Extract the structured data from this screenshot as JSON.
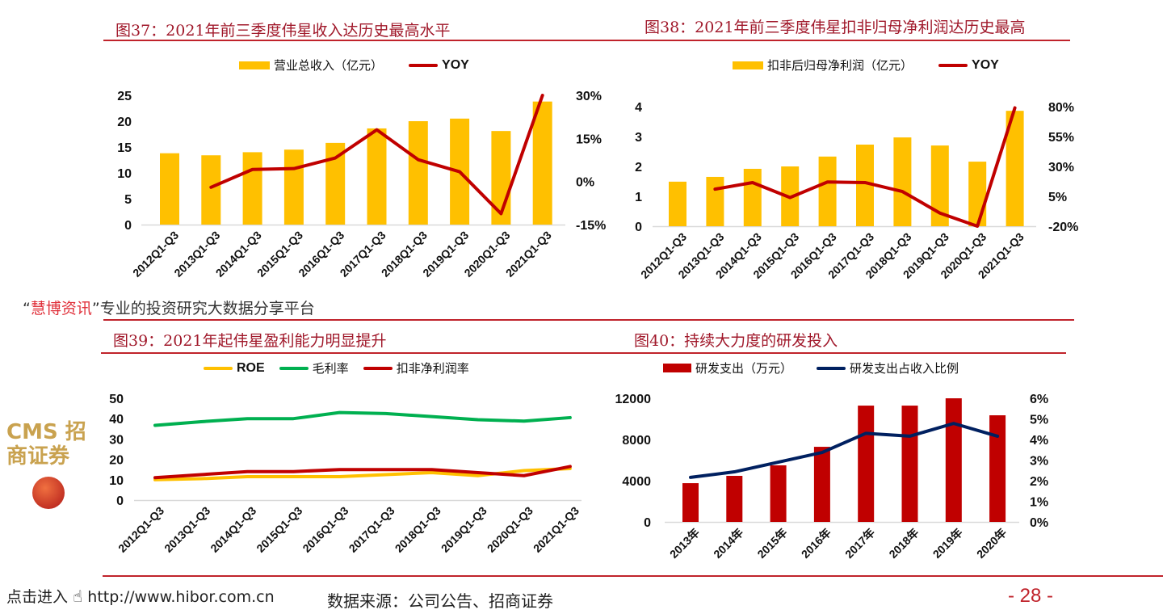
{
  "colors": {
    "yellow": "#FFC000",
    "red": "#C00000",
    "green": "#00B050",
    "navy": "#002060",
    "title": "#A0182A"
  },
  "chart_data": [
    {
      "type": "bar+line",
      "title": "图37：2021年前三季度伟星收入达历史最高水平",
      "categories": [
        "2012Q1-Q3",
        "2013Q1-Q3",
        "2014Q1-Q3",
        "2015Q1-Q3",
        "2016Q1-Q3",
        "2017Q1-Q3",
        "2018Q1-Q3",
        "2019Q1-Q3",
        "2020Q1-Q3",
        "2021Q1-Q3"
      ],
      "series": [
        {
          "name": "营业总收入（亿元）",
          "type": "bar",
          "axis": "left",
          "color": "#FFC000",
          "values": [
            13.8,
            13.4,
            14.0,
            14.5,
            15.8,
            18.6,
            20.0,
            20.5,
            18.1,
            23.8
          ]
        },
        {
          "name": "YOY",
          "type": "line",
          "axis": "right",
          "color": "#C00000",
          "values": [
            null,
            -2.0,
            4.2,
            4.5,
            8.2,
            18.0,
            7.6,
            3.4,
            -11.2,
            30.0
          ]
        }
      ],
      "left_axis": {
        "range": [
          0,
          25
        ],
        "ticks": [
          "0",
          "5",
          "10",
          "15",
          "20",
          "25"
        ]
      },
      "right_axis": {
        "range": [
          -15,
          30
        ],
        "ticks": [
          "-15%",
          "0%",
          "15%",
          "30%"
        ]
      },
      "legend": "top",
      "grid": false
    },
    {
      "type": "bar+line",
      "title": "图38：2021年前三季度伟星扣非归母净利润达历史最高",
      "categories": [
        "2012Q1-Q3",
        "2013Q1-Q3",
        "2014Q1-Q3",
        "2015Q1-Q3",
        "2016Q1-Q3",
        "2017Q1-Q3",
        "2018Q1-Q3",
        "2019Q1-Q3",
        "2020Q1-Q3",
        "2021Q1-Q3"
      ],
      "series": [
        {
          "name": "扣非后归母净利润（亿元）",
          "type": "bar",
          "axis": "left",
          "color": "#FFC000",
          "values": [
            1.49,
            1.65,
            1.92,
            2.0,
            2.33,
            2.73,
            2.97,
            2.7,
            2.16,
            3.86
          ]
        },
        {
          "name": "YOY",
          "type": "line",
          "axis": "right",
          "color": "#C00000",
          "values": [
            null,
            11,
            16.5,
            4,
            17,
            16.5,
            9,
            -9,
            -20,
            79
          ]
        }
      ],
      "left_axis": {
        "range": [
          0,
          4
        ],
        "ticks": [
          "0",
          "1",
          "2",
          "3",
          "4"
        ]
      },
      "right_axis": {
        "range": [
          -20,
          80
        ],
        "ticks": [
          "-20%",
          "5%",
          "30%",
          "55%",
          "80%"
        ]
      },
      "legend": "top",
      "grid": false
    },
    {
      "type": "line",
      "title": "图39：2021年起伟星盈利能力明显提升",
      "categories": [
        "2012Q1-Q3",
        "2013Q1-Q3",
        "2014Q1-Q3",
        "2015Q1-Q3",
        "2016Q1-Q3",
        "2017Q1-Q3",
        "2018Q1-Q3",
        "2019Q1-Q3",
        "2020Q1-Q3",
        "2021Q1-Q3"
      ],
      "series": [
        {
          "name": "ROE",
          "type": "line",
          "axis": "left",
          "color": "#FFC000",
          "values": [
            10,
            10.5,
            11.5,
            11.5,
            11.5,
            12.5,
            13.5,
            12,
            14.5,
            15.5
          ]
        },
        {
          "name": "毛利率",
          "type": "line",
          "axis": "left",
          "color": "#00B050",
          "values": [
            36.7,
            38.5,
            40,
            40,
            43,
            42.5,
            41,
            39.5,
            38.8,
            40.5
          ]
        },
        {
          "name": "扣非净利润率",
          "type": "line",
          "axis": "left",
          "color": "#C00000",
          "values": [
            11,
            12.5,
            14,
            14,
            15,
            15,
            15,
            13.5,
            12,
            16.5
          ]
        }
      ],
      "left_axis": {
        "range": [
          0,
          50
        ],
        "ticks": [
          "0",
          "10",
          "20",
          "30",
          "40",
          "50"
        ]
      },
      "legend": "top",
      "grid": false
    },
    {
      "type": "bar+line",
      "title": "图40：持续大力度的研发投入",
      "categories": [
        "2013年",
        "2014年",
        "2015年",
        "2016年",
        "2017年",
        "2018年",
        "2019年",
        "2020年"
      ],
      "series": [
        {
          "name": "研发支出（万元）",
          "type": "bar",
          "axis": "left",
          "color": "#C00000",
          "values": [
            3760,
            4470,
            5490,
            7290,
            11290,
            11290,
            12000,
            10350
          ]
        },
        {
          "name": "研发支出占收入比例",
          "type": "line",
          "axis": "right",
          "color": "#002060",
          "values": [
            2.16,
            2.43,
            2.9,
            3.37,
            4.3,
            4.16,
            4.78,
            4.16
          ]
        }
      ],
      "left_axis": {
        "range": [
          0,
          12000
        ],
        "ticks": [
          "0",
          "4000",
          "8000",
          "12000"
        ]
      },
      "right_axis": {
        "range": [
          0,
          6
        ],
        "ticks": [
          "0%",
          "1%",
          "2%",
          "3%",
          "4%",
          "5%",
          "6%"
        ]
      },
      "legend": "top",
      "grid": false
    }
  ],
  "footer": {
    "source": "数据来源：公司公告、招商证券",
    "page_number": "- 28 -",
    "watermark_brand": "慧博资讯",
    "watermark_open_quote": "“",
    "watermark_close_quote": "”",
    "watermark_slogan": "专业的投资研究大数据分享平台",
    "watermark_link_label": "点击进入",
    "watermark_url": "http://www.hibor.com.cn",
    "logo_text": "CMS 招商证券"
  }
}
